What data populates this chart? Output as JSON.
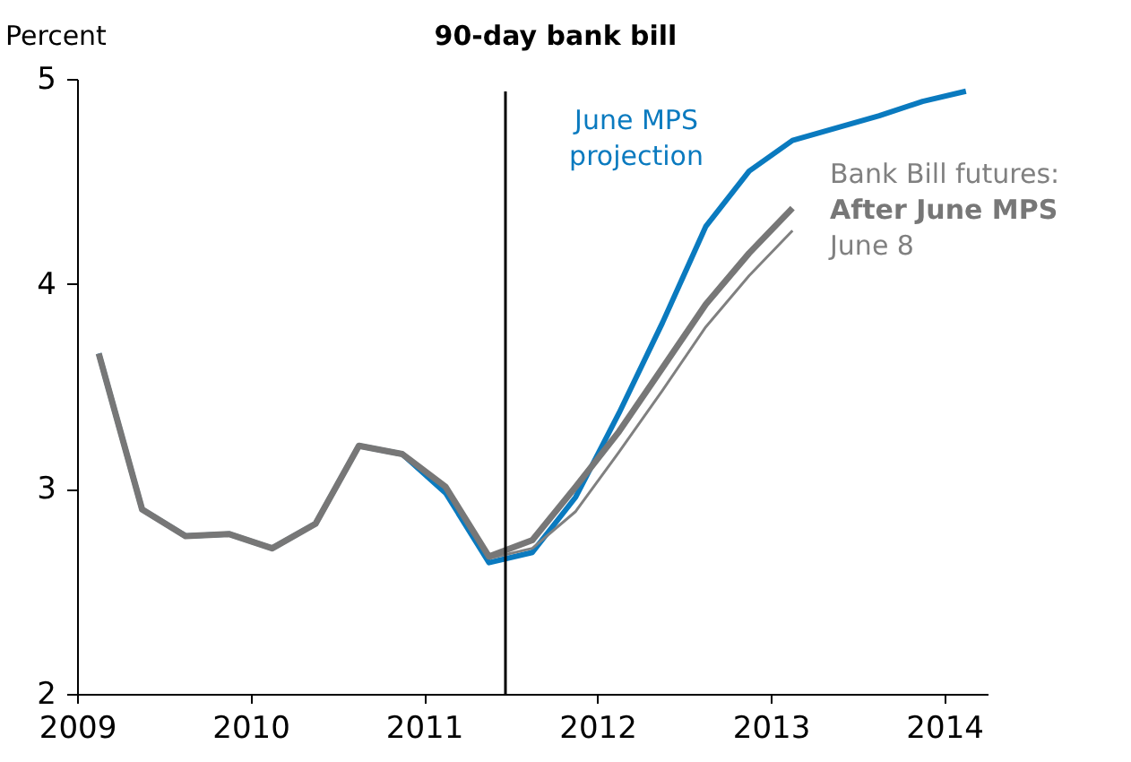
{
  "chart_data": {
    "type": "line",
    "title": "90-day bank bill",
    "ylabel": "Percent",
    "xlim": [
      2009,
      2014.25
    ],
    "xticks": [
      2009,
      2010,
      2011,
      2012,
      2013,
      2014
    ],
    "ylim": [
      2,
      5
    ],
    "yticks": [
      2,
      3,
      4,
      5
    ],
    "grid": false,
    "legend": false,
    "marker": "none",
    "line_style": "solid",
    "ref_lines": [
      {
        "axis": "x",
        "value": 2011.47,
        "color": "#000000"
      }
    ],
    "annotations": [
      "Bank Bill futures:"
    ],
    "series": [
      {
        "name": "June MPS projection",
        "color": "#0a7abf",
        "x": [
          2009.125,
          2009.375,
          2009.625,
          2009.875,
          2010.125,
          2010.375,
          2010.625,
          2010.875,
          2011.125,
          2011.375,
          2011.625,
          2011.875,
          2012.125,
          2012.375,
          2012.625,
          2012.875,
          2013.125,
          2013.375,
          2013.625,
          2013.875,
          2014.125
        ],
        "values": [
          3.66,
          2.9,
          2.77,
          2.78,
          2.71,
          2.83,
          3.21,
          3.17,
          2.98,
          2.64,
          2.69,
          2.96,
          3.37,
          3.81,
          4.28,
          4.55,
          4.7,
          4.76,
          4.82,
          4.89,
          4.94
        ]
      },
      {
        "name": "June 8",
        "color": "#808080",
        "x": [
          2011.375,
          2011.625,
          2011.875,
          2012.125,
          2012.375,
          2012.625,
          2012.875,
          2013.125
        ],
        "values": [
          2.66,
          2.71,
          2.89,
          3.18,
          3.48,
          3.79,
          4.04,
          4.26
        ]
      },
      {
        "name": "After June MPS",
        "color": "#777777",
        "x": [
          2009.125,
          2009.375,
          2009.625,
          2009.875,
          2010.125,
          2010.375,
          2010.625,
          2010.875,
          2011.125,
          2011.375,
          2011.625,
          2011.875,
          2012.125,
          2012.375,
          2012.625,
          2012.875,
          2013.125
        ],
        "values": [
          3.66,
          2.9,
          2.77,
          2.78,
          2.71,
          2.83,
          3.21,
          3.17,
          3.01,
          2.67,
          2.75,
          3.01,
          3.28,
          3.59,
          3.9,
          4.15,
          4.37
        ]
      }
    ]
  }
}
